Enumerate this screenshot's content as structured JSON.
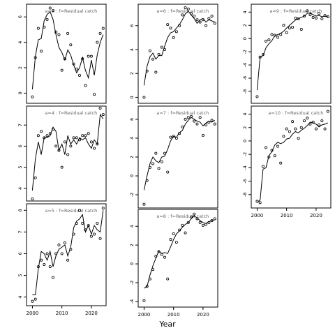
{
  "figure": {
    "xlabel": "Year"
  },
  "chart_data": [
    {
      "type": "line",
      "panel": "a=3",
      "label": "a=3 : f=Residual catch",
      "xlim": [
        1998,
        2025
      ],
      "ylim": [
        -0.8,
        7.0
      ],
      "yticks": [
        0,
        2,
        4,
        6
      ],
      "x": [
        2000,
        2001,
        2002,
        2003,
        2004,
        2005,
        2006,
        2007,
        2008,
        2009,
        2010,
        2011,
        2012,
        2013,
        2014,
        2015,
        2016,
        2017,
        2018,
        2019,
        2020,
        2021,
        2022,
        2023,
        2024
      ],
      "observed": [
        -0.3,
        2.8,
        5.1,
        3.3,
        5.2,
        5.8,
        6.7,
        6.5,
        4.8,
        4.6,
        1.8,
        2.7,
        4.7,
        3.8,
        2.3,
        1.9,
        1.4,
        2.7,
        0.6,
        2.9,
        2.9,
        -0.1,
        4.0,
        4.7,
        5.1
      ],
      "fitted": [
        0.3,
        2.9,
        4.2,
        4.3,
        5.7,
        6.2,
        6.4,
        5.8,
        4.6,
        3.6,
        3.2,
        2.6,
        3.4,
        3.0,
        2.2,
        1.6,
        2.0,
        2.8,
        1.8,
        1.2,
        2.6,
        1.4,
        3.0,
        4.0,
        4.6
      ]
    },
    {
      "type": "line",
      "panel": "a=4",
      "label": "a=4 : f=Residual catch",
      "xlim": [
        1998,
        2025
      ],
      "ylim": [
        3.4,
        7.9
      ],
      "yticks": [
        4,
        5,
        6,
        7
      ],
      "x": [
        2000,
        2001,
        2002,
        2003,
        2004,
        2005,
        2006,
        2007,
        2008,
        2009,
        2010,
        2011,
        2012,
        2013,
        2014,
        2015,
        2016,
        2017,
        2018,
        2019,
        2020,
        2021,
        2022,
        2023,
        2024
      ],
      "observed": [
        3.5,
        4.5,
        6.5,
        6.7,
        6.4,
        6.5,
        6.6,
        6.8,
        6.0,
        5.8,
        5.0,
        6.2,
        5.6,
        6.0,
        6.4,
        6.4,
        6.3,
        6.5,
        6.5,
        6.6,
        6.2,
        5.9,
        6.1,
        7.8,
        7.5
      ],
      "fitted": [
        3.9,
        5.4,
        6.2,
        5.6,
        6.4,
        6.4,
        6.5,
        6.9,
        6.7,
        5.8,
        6.1,
        5.6,
        6.5,
        6.1,
        6.3,
        6.1,
        6.4,
        6.3,
        6.4,
        6.1,
        5.9,
        6.3,
        6.1,
        7.5,
        7.3
      ]
    },
    {
      "type": "line",
      "panel": "a=5",
      "label": "a=5 : f=Residual catch",
      "xlim": [
        1998,
        2025
      ],
      "ylim": [
        3.6,
        8.3
      ],
      "yticks": [
        4,
        5,
        6,
        7,
        8
      ],
      "x": [
        2000,
        2001,
        2002,
        2003,
        2004,
        2005,
        2006,
        2007,
        2008,
        2009,
        2010,
        2011,
        2012,
        2013,
        2014,
        2015,
        2016,
        2017,
        2018,
        2019,
        2020,
        2021,
        2022,
        2023,
        2024
      ],
      "observed": [
        3.8,
        3.9,
        5.4,
        5.7,
        5.5,
        6.0,
        5.4,
        4.9,
        6.0,
        6.4,
        6.0,
        6.5,
        5.7,
        6.2,
        6.9,
        7.4,
        8.0,
        7.4,
        7.1,
        7.3,
        6.8,
        6.9,
        7.4,
        6.7,
        8.1
      ],
      "fitted": [
        4.1,
        4.1,
        5.3,
        6.1,
        6.0,
        5.7,
        6.1,
        5.4,
        5.9,
        6.2,
        6.3,
        6.4,
        5.9,
        6.3,
        7.2,
        7.5,
        7.6,
        7.8,
        7.0,
        7.3,
        6.9,
        7.3,
        7.1,
        7.0,
        8.0
      ]
    },
    {
      "type": "line",
      "panel": "a=6",
      "label": "a=6 : f=Residual catch",
      "xlim": [
        1998,
        2025
      ],
      "ylim": [
        -0.5,
        7.8
      ],
      "yticks": [
        0,
        2,
        4,
        6
      ],
      "x": [
        2000,
        2001,
        2002,
        2003,
        2004,
        2005,
        2006,
        2007,
        2008,
        2009,
        2010,
        2011,
        2012,
        2013,
        2014,
        2015,
        2016,
        2017,
        2018,
        2019,
        2020,
        2021,
        2022,
        2023,
        2024
      ],
      "observed": [
        0.0,
        2.2,
        3.9,
        3.2,
        2.1,
        3.6,
        4.2,
        4.0,
        6.1,
        5.8,
        5.0,
        5.5,
        6.0,
        6.9,
        7.5,
        7.4,
        7.0,
        6.8,
        6.5,
        6.3,
        6.5,
        6.0,
        6.6,
        6.8,
        6.2
      ],
      "fitted": [
        1.0,
        2.6,
        3.4,
        3.7,
        3.2,
        3.5,
        3.5,
        4.3,
        5.0,
        5.4,
        5.5,
        5.8,
        6.1,
        6.5,
        7.0,
        7.2,
        6.9,
        6.6,
        6.2,
        6.5,
        6.6,
        6.3,
        6.5,
        6.4,
        6.3
      ]
    },
    {
      "type": "line",
      "panel": "a=7",
      "label": "a=7 : f=Residual catch",
      "xlim": [
        1998,
        2025
      ],
      "ylim": [
        -3.4,
        7.4
      ],
      "yticks": [
        -2,
        0,
        2,
        4,
        6
      ],
      "x": [
        2000,
        2001,
        2002,
        2003,
        2004,
        2005,
        2006,
        2007,
        2008,
        2009,
        2010,
        2011,
        2012,
        2013,
        2014,
        2015,
        2016,
        2017,
        2018,
        2019,
        2020,
        2021,
        2022,
        2023,
        2024
      ],
      "observed": [
        -3.0,
        -0.5,
        0.9,
        1.3,
        2.4,
        0.8,
        1.5,
        2.4,
        0.4,
        4.1,
        4.2,
        4.0,
        4.5,
        5.2,
        6.0,
        6.2,
        6.3,
        5.8,
        5.5,
        6.2,
        4.3,
        5.4,
        5.7,
        5.9,
        5.5
      ],
      "fitted": [
        -1.5,
        0.0,
        1.3,
        2.0,
        1.6,
        1.4,
        2.0,
        2.1,
        2.8,
        3.7,
        4.2,
        4.1,
        4.6,
        4.8,
        5.5,
        5.9,
        6.2,
        6.0,
        5.8,
        5.7,
        5.3,
        5.6,
        5.8,
        5.7,
        5.9
      ]
    },
    {
      "type": "line",
      "panel": "a=8",
      "label": "a=8 : f=Residual catch",
      "xlim": [
        1998,
        2025
      ],
      "ylim": [
        -4.6,
        5.8
      ],
      "yticks": [
        -4,
        -2,
        0,
        2,
        4
      ],
      "x": [
        2000,
        2001,
        2002,
        2003,
        2004,
        2005,
        2006,
        2007,
        2008,
        2009,
        2010,
        2011,
        2012,
        2013,
        2014,
        2015,
        2016,
        2017,
        2018,
        2019,
        2020,
        2021,
        2022,
        2023,
        2024
      ],
      "observed": [
        -3.9,
        -2.4,
        -1.6,
        -0.6,
        0.8,
        1.3,
        1.0,
        0.7,
        -1.6,
        2.6,
        3.2,
        2.3,
        3.6,
        4.1,
        3.3,
        4.4,
        5.0,
        5.3,
        4.8,
        4.4,
        4.1,
        4.2,
        4.4,
        4.6,
        4.8
      ],
      "fitted": [
        -2.6,
        -2.4,
        -1.2,
        -0.2,
        0.6,
        1.4,
        1.1,
        1.2,
        1.1,
        1.8,
        2.6,
        3.2,
        3.5,
        3.9,
        4.2,
        4.4,
        4.8,
        5.1,
        4.9,
        4.6,
        4.4,
        4.3,
        4.5,
        4.6,
        4.7
      ]
    },
    {
      "type": "line",
      "panel": "a=9",
      "label": "a=9 : f=Residual catch",
      "xlim": [
        1998,
        2025
      ],
      "ylim": [
        -9.8,
        5.2
      ],
      "yticks": [
        -8,
        -6,
        -4,
        -2,
        0,
        2,
        4
      ],
      "x": [
        2000,
        2001,
        2002,
        2003,
        2004,
        2005,
        2006,
        2007,
        2008,
        2009,
        2010,
        2011,
        2012,
        2013,
        2014,
        2015,
        2016,
        2017,
        2018,
        2019,
        2020,
        2021,
        2022,
        2023,
        2024
      ],
      "observed": [
        -8.8,
        -2.8,
        -2.4,
        -0.4,
        -0.2,
        0.6,
        0.5,
        0.2,
        0.6,
        2.0,
        0.9,
        1.6,
        1.7,
        3.1,
        3.0,
        1.4,
        3.4,
        4.2,
        3.6,
        3.2,
        3.1,
        3.8,
        3.0,
        3.5,
        3.3
      ],
      "fitted": [
        -7.8,
        -2.8,
        -2.6,
        -1.4,
        -0.8,
        -0.3,
        0.4,
        0.6,
        0.8,
        1.1,
        1.6,
        2.0,
        2.4,
        2.8,
        3.0,
        3.2,
        3.4,
        3.8,
        3.9,
        3.6,
        3.4,
        3.5,
        3.3,
        3.4,
        3.3
      ]
    },
    {
      "type": "line",
      "panel": "a=10",
      "label": "a=10 : f=Residual catch",
      "xlim": [
        1998,
        2025
      ],
      "ylim": [
        -10.0,
        5.2
      ],
      "yticks": [
        -8,
        -6,
        -4,
        -2,
        0,
        2,
        4
      ],
      "x": [
        2000,
        2001,
        2002,
        2003,
        2004,
        2005,
        2006,
        2007,
        2008,
        2009,
        2010,
        2011,
        2012,
        2013,
        2014,
        2015,
        2016,
        2017,
        2018,
        2019,
        2020,
        2021,
        2022,
        2023,
        2024
      ],
      "observed": [
        -9.0,
        -9.2,
        -3.8,
        -1.0,
        -2.4,
        -1.4,
        -2.2,
        -0.8,
        -3.3,
        0.7,
        1.8,
        1.4,
        2.9,
        1.8,
        0.4,
        2.0,
        3.0,
        3.4,
        2.5,
        2.8,
        1.8,
        2.4,
        3.0,
        1.8,
        4.4
      ],
      "fitted": [
        -9.2,
        -8.8,
        -4.2,
        -4.0,
        -2.2,
        -1.6,
        -0.6,
        -0.2,
        -0.4,
        -0.2,
        0.3,
        0.4,
        1.0,
        1.4,
        1.2,
        1.6,
        1.9,
        2.3,
        2.8,
        2.7,
        2.5,
        2.1,
        2.4,
        2.5,
        2.7
      ]
    }
  ]
}
